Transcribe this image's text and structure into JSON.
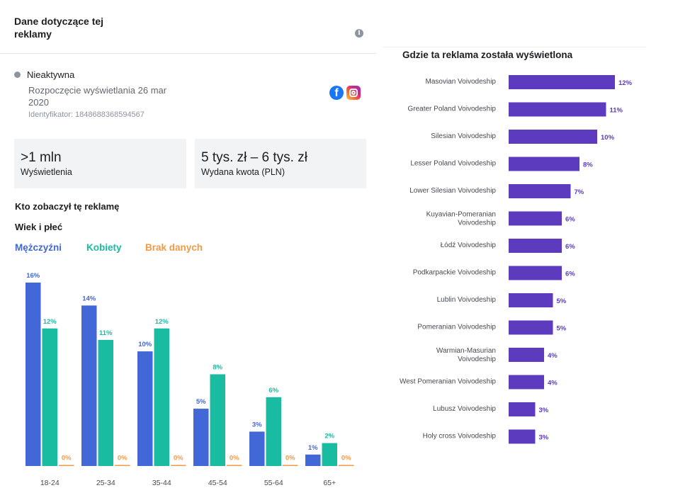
{
  "header": {
    "title": "Dane dotyczące tej reklamy",
    "info_icon": "info-icon"
  },
  "ad": {
    "status": "Nieaktywna",
    "status_color": "#8d949e",
    "start": "Rozpoczęcie wyświetlania 26 mar 2020",
    "id": "Identyfikator: 1848688368594567",
    "platforms": [
      "facebook-icon",
      "instagram-icon"
    ]
  },
  "stats": [
    {
      "value": ">1 mln",
      "label": "Wyświetlenia"
    },
    {
      "value": "5 tys. zł – 6 tys. zł",
      "label": "Wydana kwota (PLN)"
    }
  ],
  "who": {
    "title": "Kto zobaczył tę reklamę",
    "age_gender_title": "Wiek i płeć",
    "legend": [
      "Mężczyźni",
      "Kobiety",
      "Brak danych"
    ]
  },
  "regions": {
    "title": "Gdzie ta reklama została wyświetlona"
  },
  "chart_data": [
    {
      "type": "bar",
      "title": "Wiek i płeć",
      "categories": [
        "18-24",
        "25-34",
        "35-44",
        "45-54",
        "55-64",
        "65+"
      ],
      "series": [
        {
          "name": "Mężczyźni",
          "color": "#4267d6",
          "values": [
            16,
            14,
            10,
            5,
            3,
            1
          ]
        },
        {
          "name": "Kobiety",
          "color": "#19bba1",
          "values": [
            12,
            11,
            12,
            8,
            6,
            2
          ]
        },
        {
          "name": "Brak danych",
          "color": "#f19a46",
          "values": [
            0,
            0,
            0,
            0,
            0,
            0
          ]
        }
      ],
      "value_suffix": "%",
      "ylim": [
        0,
        16
      ],
      "legend": "top-left",
      "grid": false
    },
    {
      "type": "bar",
      "orientation": "horizontal",
      "title": "Gdzie ta reklama została wyświetlona",
      "color": "#5c3bbf",
      "categories": [
        "Masovian Voivodeship",
        "Greater Poland Voivodeship",
        "Silesian Voivodeship",
        "Lesser Poland Voivodeship",
        "Lower Silesian Voivodeship",
        "Kuyavian-Pomeranian Voivodeship",
        "Łódź Voivodeship",
        "Podkarpackie Voivodeship",
        "Lublin Voivodeship",
        "Pomeranian Voivodeship",
        "Warmian-Masurian Voivodeship",
        "West Pomeranian Voivodeship",
        "Lubusz Voivodeship",
        "Holy cross Voivodeship"
      ],
      "values": [
        12,
        11,
        10,
        8,
        7,
        6,
        6,
        6,
        5,
        5,
        4,
        4,
        3,
        3
      ],
      "value_suffix": "%",
      "xlim": [
        0,
        12
      ],
      "grid": false
    }
  ]
}
